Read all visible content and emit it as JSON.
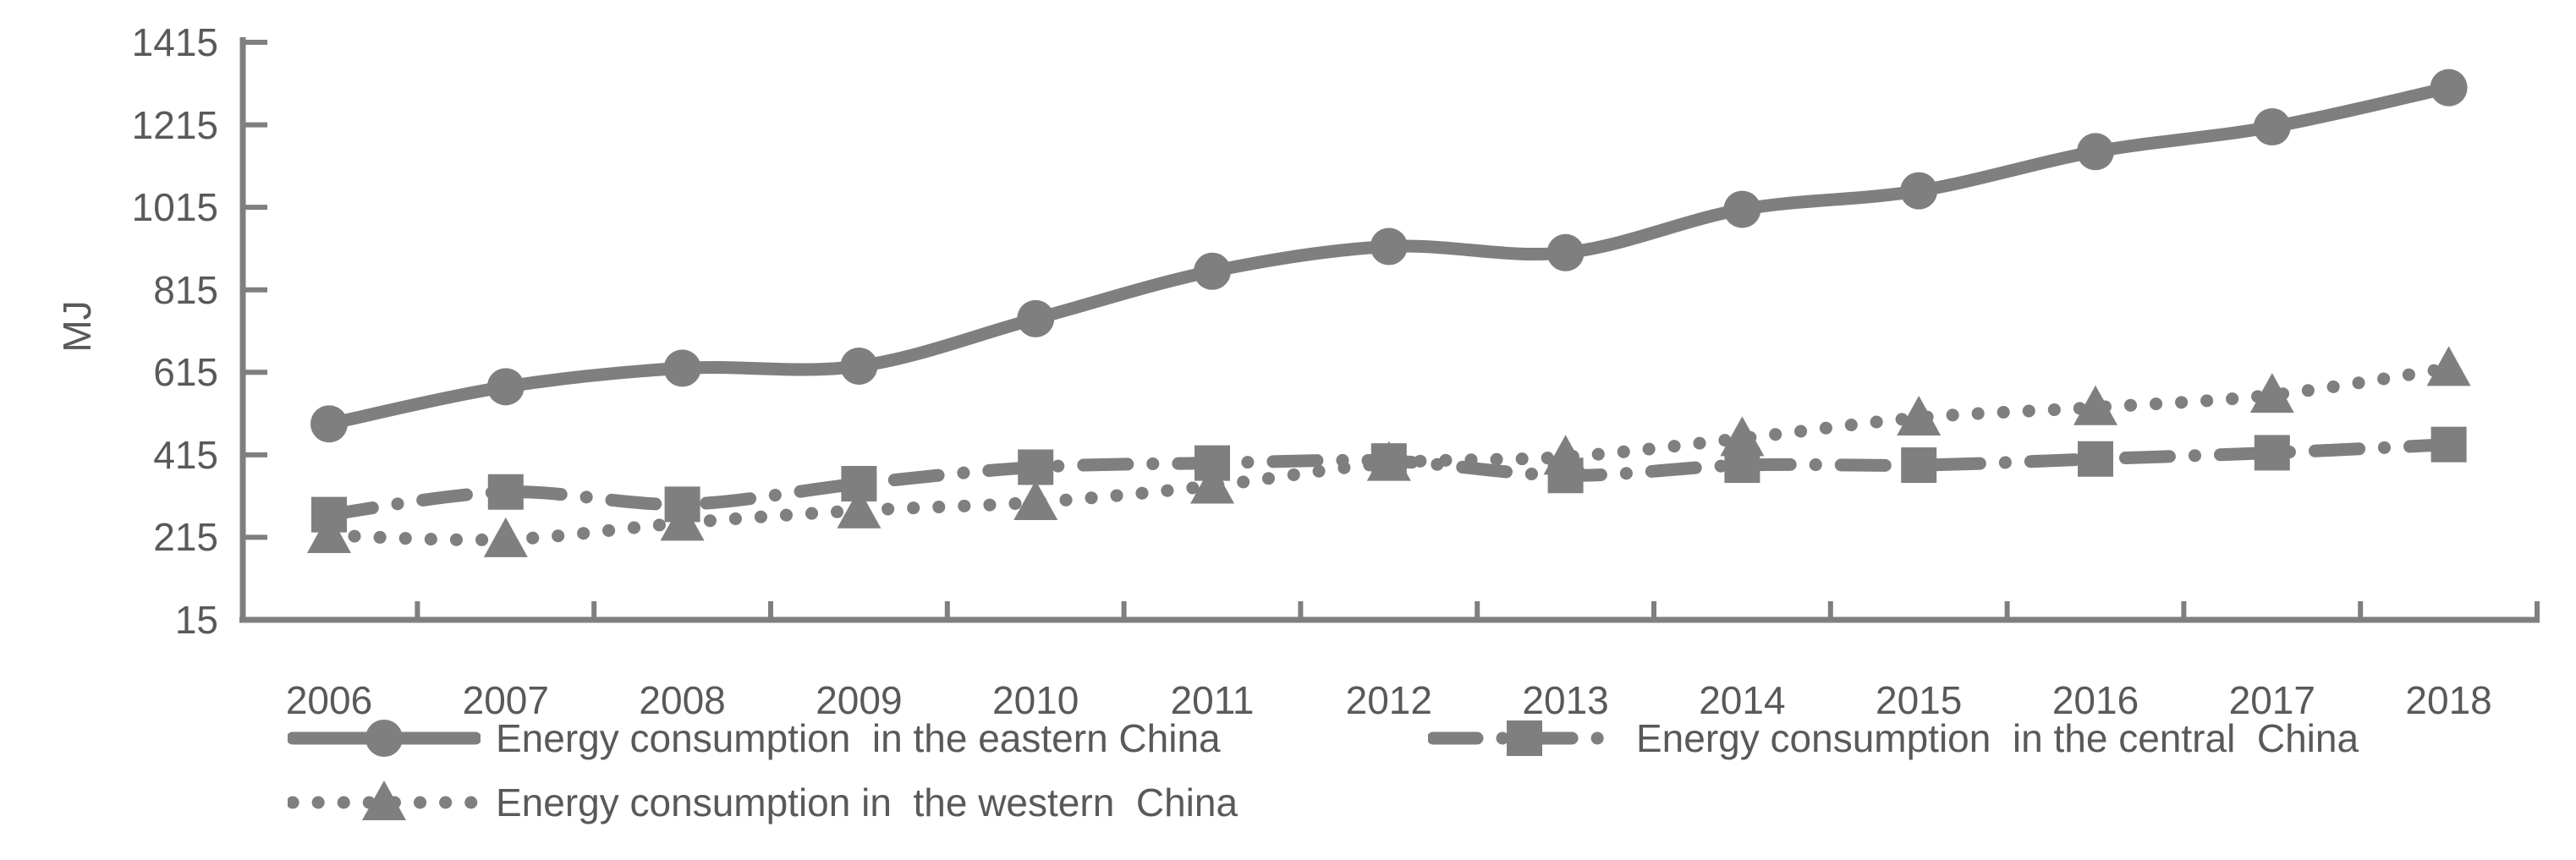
{
  "chart_data": {
    "type": "line",
    "title": "",
    "xlabel": "",
    "ylabel": "MJ",
    "categories": [
      "2006",
      "2007",
      "2008",
      "2009",
      "2010",
      "2011",
      "2012",
      "2013",
      "2014",
      "2015",
      "2016",
      "2017",
      "2018"
    ],
    "yticks": [
      15,
      215,
      415,
      615,
      815,
      1015,
      1215,
      1415
    ],
    "ylim": [
      15,
      1415
    ],
    "grid": false,
    "legend_position": "bottom",
    "series": [
      {
        "name": "Energy consumption  in the eastern China",
        "marker": "circle",
        "line_style": "solid",
        "values": [
          490,
          580,
          625,
          630,
          745,
          860,
          920,
          905,
          1010,
          1055,
          1150,
          1210,
          1305
        ]
      },
      {
        "name": "Energy consumption  in the central  China",
        "marker": "square",
        "line_style": "dash-dot",
        "values": [
          270,
          325,
          295,
          345,
          385,
          395,
          400,
          365,
          390,
          390,
          405,
          420,
          440
        ]
      },
      {
        "name": "Energy consumption in  the western  China",
        "marker": "triangle",
        "line_style": "dotted",
        "values": [
          220,
          210,
          250,
          280,
          300,
          340,
          395,
          410,
          455,
          505,
          530,
          560,
          625
        ]
      }
    ],
    "colors": {
      "series": "#7f7f7f",
      "axis": "#7f7f7f",
      "text": "#595959"
    }
  }
}
